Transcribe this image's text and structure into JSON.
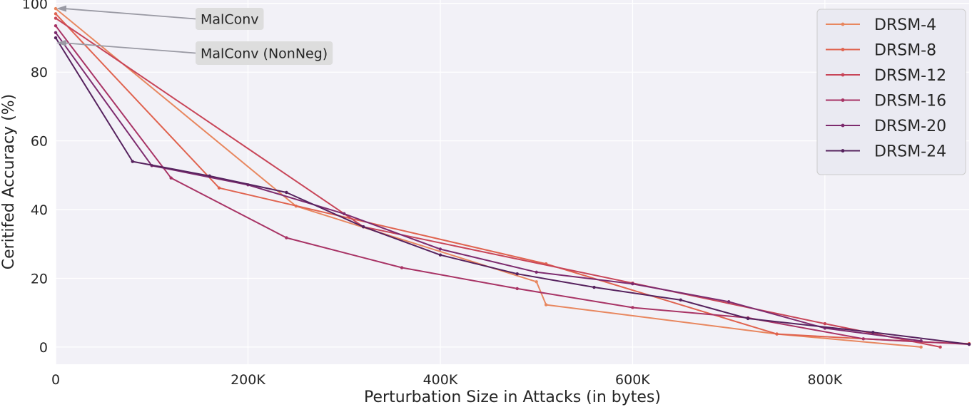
{
  "chart_data": {
    "type": "line",
    "xlabel": "Perturbation Size in Attacks (in bytes)",
    "ylabel": "Ceritifed Accuracy (%)",
    "xlim": [
      0,
      950000
    ],
    "ylim": [
      -5,
      101
    ],
    "xticks": [
      0,
      200000,
      400000,
      600000,
      800000
    ],
    "xtick_labels": [
      "0",
      "200K",
      "400K",
      "600K",
      "800K"
    ],
    "yticks": [
      0,
      20,
      40,
      60,
      80,
      100
    ],
    "ytick_labels": [
      "0",
      "20",
      "40",
      "60",
      "80",
      "100"
    ],
    "grid": true,
    "legend_position": "top-right",
    "series": [
      {
        "name": "DRSM-4",
        "color": "#e8875f",
        "x": [
          0,
          250000,
          500000,
          510000,
          750000,
          900000
        ],
        "y": [
          98.5,
          41,
          19,
          12.3,
          3.8,
          0
        ]
      },
      {
        "name": "DRSM-8",
        "color": "#e0634f",
        "x": [
          0,
          170000,
          510000,
          750000,
          900000,
          950000
        ],
        "y": [
          97,
          46.3,
          24.2,
          3.8,
          1.5,
          1
        ]
      },
      {
        "name": "DRSM-12",
        "color": "#c84558",
        "x": [
          0,
          320000,
          600000,
          800000,
          920000
        ],
        "y": [
          95.7,
          35,
          18.6,
          6.8,
          0
        ]
      },
      {
        "name": "DRSM-16",
        "color": "#a83365",
        "x": [
          0,
          120000,
          240000,
          360000,
          480000,
          600000,
          720000,
          840000,
          950000
        ],
        "y": [
          93.5,
          49.2,
          31.8,
          23.1,
          17,
          11.5,
          8.5,
          2.4,
          0.8
        ]
      },
      {
        "name": "DRSM-20",
        "color": "#7d2b6e",
        "x": [
          0,
          100000,
          200000,
          300000,
          400000,
          500000,
          600000,
          700000,
          800000,
          900000
        ],
        "y": [
          91.5,
          52.8,
          47.2,
          38.8,
          28.5,
          21.8,
          18.4,
          13.2,
          5.5,
          1.8
        ]
      },
      {
        "name": "DRSM-24",
        "color": "#56225e",
        "x": [
          0,
          80000,
          160000,
          240000,
          320000,
          400000,
          480000,
          560000,
          650000,
          720000,
          850000,
          950000
        ],
        "y": [
          90,
          54,
          49.8,
          45,
          35,
          26.8,
          21.3,
          17.4,
          13.7,
          8.3,
          4.3,
          0.8
        ]
      }
    ],
    "annotations": [
      {
        "text": "MalConv",
        "target_x": 0,
        "target_y": 98.5
      },
      {
        "text": "MalConv (NonNeg)",
        "target_x": 0,
        "target_y": 88.5
      }
    ]
  },
  "colors": {
    "plot_background": "#f2f1f7",
    "grid": "#ffffff",
    "legend_background": "#eaeaf2",
    "legend_border": "#cccccc",
    "annotation_box": "#dddddd",
    "annotation_arrow": "#9a9aa4"
  }
}
